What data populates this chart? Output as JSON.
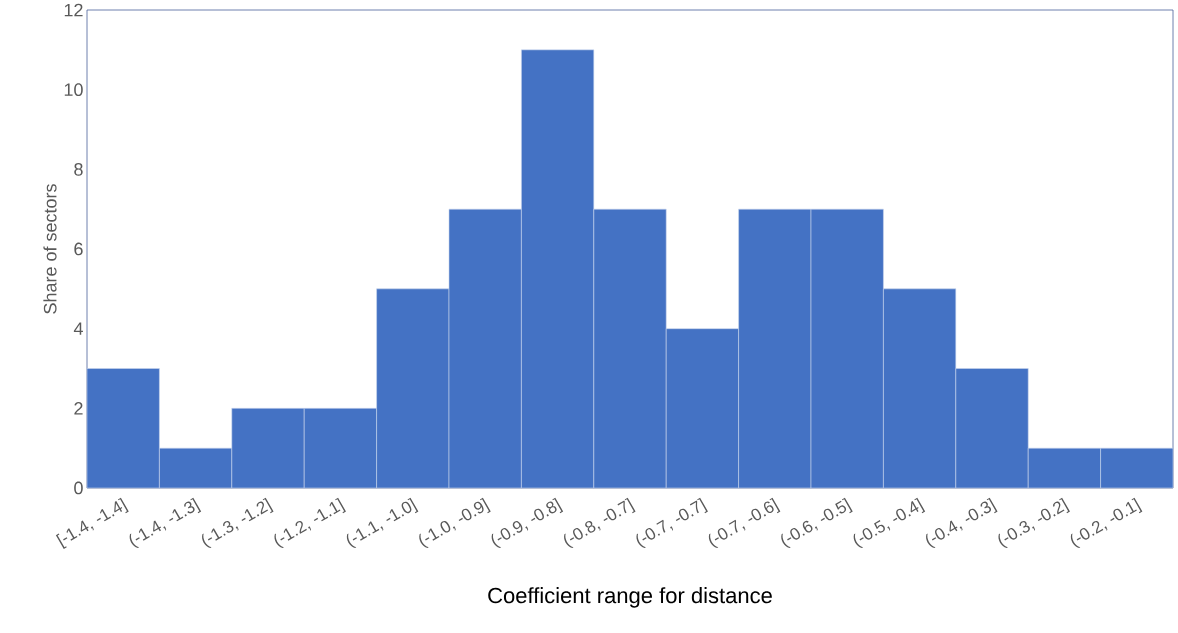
{
  "chart_data": {
    "type": "bar",
    "xlabel": "Coefficient range for distance",
    "ylabel": "Share of sectors",
    "categories": [
      "[-1.4, -1.4]",
      "(-1.4, -1.3]",
      "(-1.3, -1.2]",
      "(-1.2, -1.1]",
      "(-1.1, -1.0]",
      "(-1.0, -0.9]",
      "(-0.9, -0.8]",
      "(-0.8, -0.7]",
      "(-0.7, -0.7]",
      "(-0.7, -0.6]",
      "(-0.6, -0.5]",
      "(-0.5, -0.4]",
      "(-0.4, -0.3]",
      "(-0.3, -0.2]",
      "(-0.2, -0.1]"
    ],
    "values": [
      3,
      1,
      2,
      2,
      5,
      7,
      11,
      7,
      4,
      7,
      7,
      5,
      3,
      1,
      1
    ],
    "color": "#4472c4",
    "ylim": [
      0,
      12
    ],
    "yticks": [
      0,
      2,
      4,
      6,
      8,
      10,
      12
    ]
  }
}
